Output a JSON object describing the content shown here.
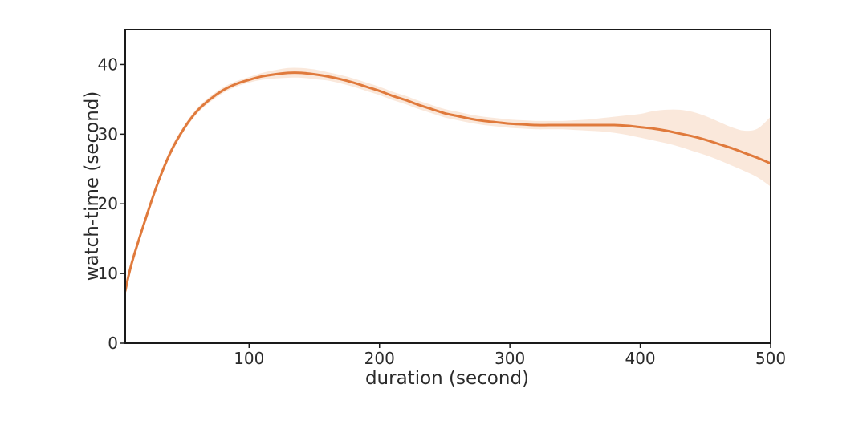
{
  "chart_data": {
    "type": "line",
    "xlabel": "duration (second)",
    "ylabel": "watch-time (second)",
    "xlim": [
      5,
      500
    ],
    "ylim": [
      0,
      45
    ],
    "xticks": [
      100,
      200,
      300,
      400,
      500
    ],
    "yticks": [
      0,
      10,
      20,
      30,
      40
    ],
    "grid": false,
    "legend": "none",
    "colors": {
      "line": "#e07a3c",
      "band": "#f7d9c3",
      "frame": "#1a1a1a"
    },
    "series": [
      {
        "x": [
          5,
          10,
          20,
          30,
          40,
          50,
          60,
          70,
          80,
          90,
          100,
          110,
          120,
          130,
          140,
          150,
          160,
          170,
          180,
          190,
          200,
          210,
          220,
          230,
          240,
          250,
          260,
          270,
          280,
          290,
          300,
          310,
          320,
          330,
          340,
          350,
          360,
          370,
          380,
          390,
          400,
          410,
          420,
          430,
          440,
          450,
          460,
          470,
          480,
          490,
          500
        ],
        "y": [
          7.5,
          11.5,
          17.5,
          23.0,
          27.5,
          30.8,
          33.3,
          35.0,
          36.3,
          37.2,
          37.8,
          38.3,
          38.6,
          38.8,
          38.8,
          38.6,
          38.3,
          37.9,
          37.4,
          36.8,
          36.2,
          35.5,
          34.9,
          34.2,
          33.6,
          33.0,
          32.6,
          32.2,
          31.9,
          31.7,
          31.5,
          31.4,
          31.3,
          31.3,
          31.3,
          31.3,
          31.3,
          31.3,
          31.3,
          31.2,
          31.0,
          30.8,
          30.5,
          30.1,
          29.7,
          29.2,
          28.6,
          28.0,
          27.3,
          26.6,
          25.8
        ],
        "lower": [
          6.5,
          10.8,
          17.0,
          22.5,
          27.0,
          30.4,
          32.9,
          34.6,
          35.9,
          36.8,
          37.4,
          37.8,
          38.0,
          38.1,
          38.1,
          37.9,
          37.7,
          37.3,
          36.8,
          36.2,
          35.6,
          34.9,
          34.3,
          33.6,
          33.0,
          32.4,
          32.0,
          31.6,
          31.3,
          31.1,
          30.9,
          30.8,
          30.7,
          30.7,
          30.7,
          30.6,
          30.5,
          30.4,
          30.2,
          29.9,
          29.5,
          29.1,
          28.7,
          28.2,
          27.6,
          27.0,
          26.3,
          25.5,
          24.7,
          23.8,
          22.5
        ],
        "upper": [
          8.5,
          12.2,
          18.0,
          23.5,
          28.0,
          31.2,
          33.7,
          35.4,
          36.7,
          37.6,
          38.2,
          38.8,
          39.2,
          39.5,
          39.5,
          39.3,
          38.9,
          38.5,
          38.0,
          37.4,
          36.8,
          36.1,
          35.5,
          34.8,
          34.2,
          33.6,
          33.2,
          32.8,
          32.5,
          32.3,
          32.1,
          32.0,
          31.9,
          31.9,
          31.9,
          32.0,
          32.1,
          32.3,
          32.5,
          32.7,
          32.9,
          33.3,
          33.5,
          33.5,
          33.2,
          32.6,
          31.8,
          31.0,
          30.5,
          30.8,
          32.5
        ]
      }
    ]
  }
}
